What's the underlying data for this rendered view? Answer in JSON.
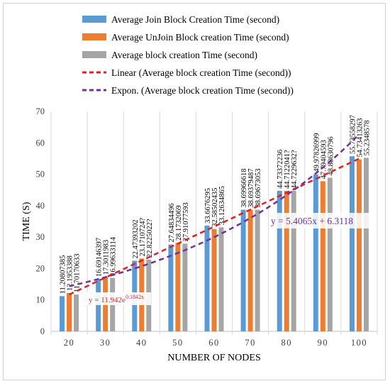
{
  "chart_data": {
    "type": "bar",
    "title": "",
    "xlabel": "NUMBER OF NODES",
    "ylabel": "TIME (S)",
    "ylim": [
      0,
      70
    ],
    "yticks": [
      0,
      10,
      20,
      30,
      40,
      50,
      60,
      70
    ],
    "grid": "vertical category separators",
    "legend_position": "top",
    "categories": [
      "20",
      "30",
      "40",
      "50",
      "60",
      "70",
      "80",
      "90",
      "100"
    ],
    "series": [
      {
        "name": "Average Join Block Creation Time (second)",
        "color": "#5b9bd5",
        "values": [
          11.20807385,
          16.69146397,
          22.47393202,
          27.64834496,
          33.6676295,
          38.69966618,
          44.73372236,
          49.97826999,
          55.73558297
        ]
      },
      {
        "name": "Average UnJoin Block creation Time (second)",
        "color": "#ed7d31",
        "values": [
          12.1953388,
          17.3011983,
          23.17107247,
          28.1732069,
          32.58502435,
          38.69379487,
          44.71220417,
          47.79404593,
          54.73413263
        ]
      },
      {
        "name": "Average block creation Time (second)",
        "color": "#a5a5a5",
        "values": [
          11.70170633,
          16.99633114,
          22.82250225,
          27.91077593,
          33.12634865,
          38.69673053,
          44.72296327,
          48.88630796,
          55.2348578
        ]
      }
    ],
    "data_labels": [
      [
        "11.20807385",
        "12.1953388",
        "11.70170633"
      ],
      [
        "16.69146397",
        "17.3011983",
        "16.99633114"
      ],
      [
        "22.47393202",
        "23.1710724?",
        "22.8225022?"
      ],
      [
        "27.64834496",
        "28.1732069",
        "27.91077593"
      ],
      [
        "33.6676295",
        "32.58502435",
        "33.12634865"
      ],
      [
        "38.69966618",
        "38.69379487",
        "38.69673053"
      ],
      [
        "44.73372236",
        "44.7122041?",
        "44.7229632?"
      ],
      [
        "49.97826999",
        "47.79404593",
        "48.88630796"
      ],
      [
        "55.73558297",
        "54.73413263",
        "55.2348578"
      ]
    ],
    "trendlines": [
      {
        "name": "Linear (Average block creation Time (second))",
        "kind": "linear",
        "color": "#e02020",
        "equation": "y = 5.4065x + 6.3118",
        "slope": 5.4065,
        "intercept": 6.3118
      },
      {
        "name": "Expon. (Average block creation Time (second))",
        "kind": "exponential",
        "color": "#7030a0",
        "equation_base": "y = 11.942e",
        "equation_exponent": "0.1842x",
        "coefficient": 11.942,
        "rate": 0.1842
      }
    ]
  }
}
